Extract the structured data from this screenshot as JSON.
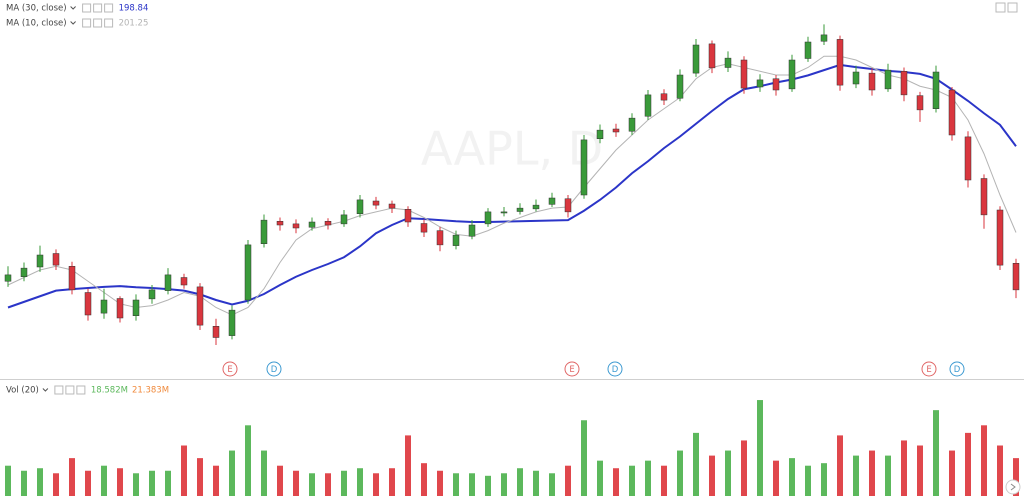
{
  "chart_data": {
    "type": "candlestick",
    "title": "AAPL, D",
    "ylim": [
      140,
      240
    ],
    "volume_ylim": [
      0,
      40
    ],
    "up_color": "#3a9a3a",
    "down_color": "#d9363e",
    "volume_up_color": "#5cb85c",
    "volume_down_color": "#e0474c",
    "ohlc": [
      [
        165,
        169,
        163.5,
        166.7
      ],
      [
        166.2,
        170,
        165,
        168.5
      ],
      [
        168.8,
        174.5,
        167.5,
        172
      ],
      [
        172.4,
        173.5,
        168,
        169.3
      ],
      [
        169,
        170.2,
        161.5,
        162.7
      ],
      [
        162,
        163,
        154.5,
        156
      ],
      [
        156.5,
        163,
        155,
        160
      ],
      [
        160.4,
        161,
        154,
        155.2
      ],
      [
        155.8,
        161.5,
        154.5,
        160
      ],
      [
        160.3,
        164,
        159,
        162.7
      ],
      [
        162.5,
        168.5,
        161.5,
        166.7
      ],
      [
        166,
        167,
        163,
        164
      ],
      [
        163.5,
        164.5,
        152,
        153.3
      ],
      [
        153,
        155,
        148,
        150
      ],
      [
        150.5,
        158.5,
        149.5,
        157.3
      ],
      [
        160,
        176,
        159,
        174.7
      ],
      [
        175,
        182.8,
        174,
        181.3
      ],
      [
        181,
        182,
        178.5,
        180
      ],
      [
        180.3,
        181.5,
        177.8,
        179.2
      ],
      [
        179.4,
        182,
        178.5,
        180.8
      ],
      [
        181,
        181.8,
        178.8,
        180
      ],
      [
        180.3,
        184,
        179.5,
        182.7
      ],
      [
        183,
        188,
        182,
        186.7
      ],
      [
        186.4,
        187.5,
        184.2,
        185.3
      ],
      [
        185.6,
        186.5,
        183.2,
        184.5
      ],
      [
        184.2,
        185,
        179.5,
        180.8
      ],
      [
        180.4,
        181.5,
        176.8,
        178.1
      ],
      [
        178.5,
        179.5,
        173,
        174.7
      ],
      [
        174.5,
        178.5,
        173.5,
        177.3
      ],
      [
        177,
        181.3,
        176.2,
        180
      ],
      [
        180.3,
        184.5,
        179.5,
        183.5
      ],
      [
        183.2,
        184.8,
        182.3,
        183.5
      ],
      [
        183.6,
        185.8,
        182.8,
        184.5
      ],
      [
        184.3,
        186.8,
        183.6,
        185.3
      ],
      [
        185.5,
        188.6,
        184.8,
        187.2
      ],
      [
        187,
        188,
        182,
        183.5
      ],
      [
        188,
        204,
        187,
        202.7
      ],
      [
        203,
        206.8,
        201.8,
        205.3
      ],
      [
        205.6,
        207,
        203.5,
        204.8
      ],
      [
        205,
        209.8,
        204,
        208.5
      ],
      [
        209,
        216,
        208,
        214.7
      ],
      [
        215,
        216.2,
        212,
        213.3
      ],
      [
        213.8,
        221.5,
        213,
        220
      ],
      [
        220.5,
        229.6,
        219.5,
        228
      ],
      [
        228.3,
        229.2,
        220.5,
        221.9
      ],
      [
        222,
        226.3,
        220.8,
        224.5
      ],
      [
        224,
        225,
        215,
        216.5
      ],
      [
        216.8,
        220.2,
        215.5,
        218.7
      ],
      [
        219,
        220,
        214.5,
        216
      ],
      [
        216.3,
        225.4,
        215.5,
        224
      ],
      [
        224.4,
        230.2,
        223.5,
        228.8
      ],
      [
        229,
        233.5,
        228,
        230.7
      ],
      [
        229.5,
        230.5,
        215.8,
        217.3
      ],
      [
        217.6,
        222.5,
        216.5,
        220.8
      ],
      [
        220.5,
        221.8,
        214.5,
        216
      ],
      [
        216.3,
        223,
        215.5,
        221.3
      ],
      [
        221,
        222,
        213,
        214.7
      ],
      [
        214.5,
        215.5,
        207.5,
        210.7
      ],
      [
        211,
        222.5,
        210,
        220.8
      ],
      [
        216,
        216.8,
        202.5,
        204
      ],
      [
        203.5,
        205,
        190,
        192
      ],
      [
        192.4,
        193.5,
        179,
        182.7
      ],
      [
        184,
        185,
        168,
        169.3
      ],
      [
        169.8,
        171,
        160.5,
        162.7
      ]
    ],
    "volume": [
      12,
      10,
      11,
      9,
      15,
      10,
      12,
      11,
      9,
      10,
      10,
      20,
      15,
      12,
      18,
      28,
      18,
      12,
      10,
      9,
      9,
      10,
      11,
      9,
      11,
      24,
      13,
      10,
      9,
      9,
      8,
      9,
      11,
      10,
      9,
      12,
      30,
      14,
      11,
      12,
      14,
      12,
      18,
      25,
      16,
      18,
      22,
      38,
      14,
      15,
      12,
      13,
      24,
      16,
      18,
      16,
      22,
      20,
      34,
      18,
      25,
      28,
      20,
      15
    ],
    "series": [
      {
        "name": "MA (30, close)",
        "color": "#2b35c8",
        "legend_value": 198.84,
        "values": [
          158,
          159.5,
          161,
          162.5,
          162.9,
          163.2,
          163.5,
          163.7,
          163.4,
          163.2,
          162.9,
          162.5,
          161.5,
          160,
          158.8,
          159.8,
          161.6,
          164,
          166.2,
          168,
          169.6,
          171.4,
          174.3,
          177.8,
          180,
          181.8,
          181.6,
          181.3,
          181,
          180.8,
          180.8,
          180.9,
          181,
          181.1,
          181.2,
          181.3,
          183.8,
          186.7,
          190,
          193.8,
          197,
          200.5,
          203.6,
          207,
          210.4,
          213.6,
          216.2,
          217,
          218,
          218.8,
          219.9,
          221.3,
          222.7,
          222.1,
          221.6,
          221.1,
          220.8,
          220.3,
          219,
          216.1,
          213.1,
          209.8,
          206.7,
          201
        ]
      },
      {
        "name": "MA (10, close)",
        "color": "#b4b4b4",
        "legend_value": 201.25,
        "values": [
          164,
          166,
          168,
          169,
          168,
          165,
          162,
          159,
          158,
          158.5,
          160,
          162,
          161,
          158,
          156,
          158,
          163,
          170,
          176,
          179,
          180,
          181,
          182.5,
          183.5,
          184.5,
          184,
          182,
          179.5,
          177.5,
          177,
          178.5,
          180.5,
          182,
          183.5,
          184.5,
          184.8,
          190,
          195,
          200,
          204,
          208,
          211,
          214,
          219,
          222,
          223,
          222,
          221,
          220,
          220,
          222,
          225,
          225,
          224,
          222,
          220,
          219,
          217,
          216,
          214,
          208,
          199,
          188,
          178
        ]
      }
    ],
    "volume_legend": {
      "name": "Vol (20)",
      "values": [
        "18.582M",
        "21.383M"
      ]
    },
    "events": [
      "E",
      "D",
      "E",
      "D",
      "E",
      "D"
    ]
  }
}
